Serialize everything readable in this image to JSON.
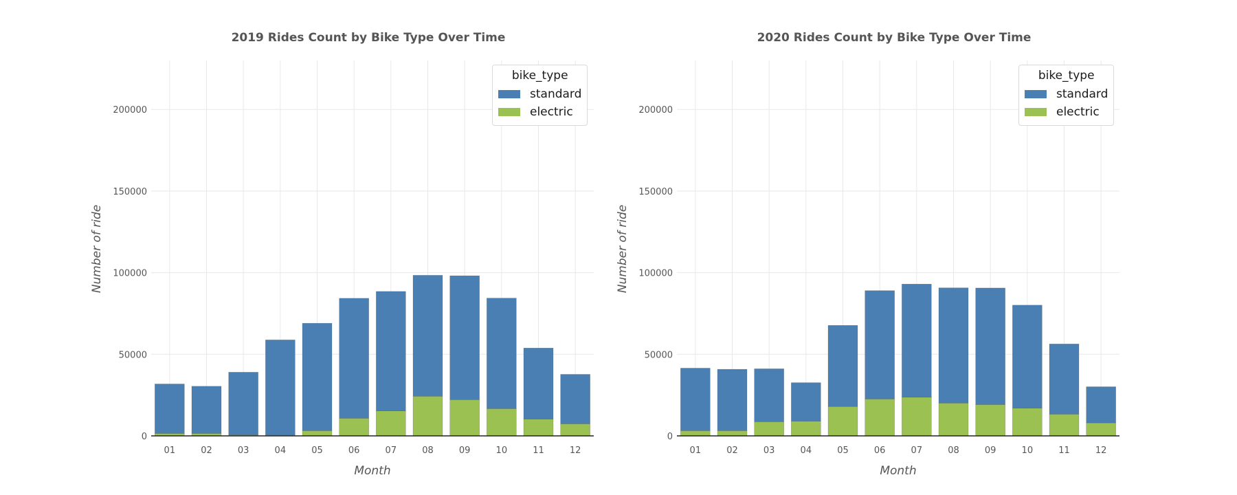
{
  "colors": {
    "standard": "#4a7fb4",
    "electric": "#9bc153",
    "text": "#555555",
    "grid": "#e8e8e8",
    "axis": "#222222"
  },
  "chart_data": [
    {
      "type": "bar",
      "stacked": true,
      "title": "2019 Rides Count by Bike Type Over Time",
      "xlabel": "Month",
      "ylabel": "Number of ride",
      "categories": [
        "01",
        "02",
        "03",
        "04",
        "05",
        "06",
        "07",
        "08",
        "09",
        "10",
        "11",
        "12"
      ],
      "ylim": [
        0,
        230000
      ],
      "yticks": [
        "0",
        "50000",
        "100000",
        "150000",
        "200000"
      ],
      "grid": true,
      "legend": {
        "title": "bike_type",
        "placement": "top-right",
        "entries": [
          "standard",
          "electric"
        ]
      },
      "series": [
        {
          "name": "electric",
          "values": [
            1500,
            1500,
            600,
            500,
            3200,
            10800,
            15300,
            24300,
            22200,
            16700,
            10300,
            7400
          ]
        },
        {
          "name": "standard",
          "values": [
            30300,
            28900,
            38400,
            58300,
            65800,
            73500,
            73200,
            74100,
            75900,
            67700,
            43500,
            30300
          ]
        }
      ]
    },
    {
      "type": "bar",
      "stacked": true,
      "title": "2020 Rides Count by Bike Type Over Time",
      "xlabel": "Month",
      "ylabel": "Number of ride",
      "categories": [
        "01",
        "02",
        "03",
        "04",
        "05",
        "06",
        "07",
        "08",
        "09",
        "10",
        "11",
        "12"
      ],
      "ylim": [
        0,
        230000
      ],
      "yticks": [
        "0",
        "50000",
        "100000",
        "150000",
        "200000"
      ],
      "grid": true,
      "legend": {
        "title": "bike_type",
        "placement": "top-right",
        "entries": [
          "standard",
          "electric"
        ]
      },
      "series": [
        {
          "name": "electric",
          "values": [
            3200,
            3200,
            8700,
            9000,
            18000,
            22600,
            23700,
            20100,
            19200,
            17000,
            13300,
            8000
          ]
        },
        {
          "name": "standard",
          "values": [
            38300,
            37600,
            32400,
            23600,
            49700,
            66400,
            69300,
            70600,
            71400,
            63100,
            43000,
            22100
          ]
        }
      ]
    }
  ]
}
